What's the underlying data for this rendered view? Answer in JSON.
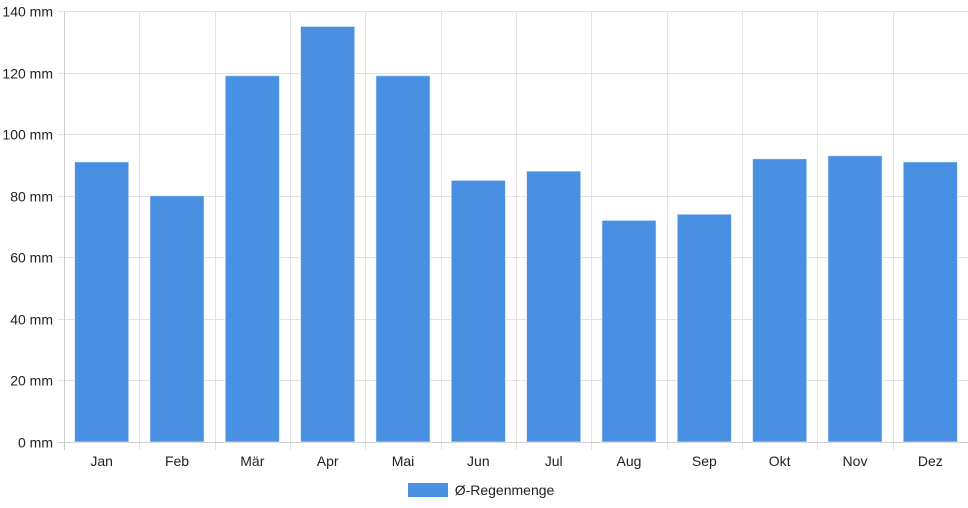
{
  "chart_data": {
    "type": "bar",
    "categories": [
      "Jan",
      "Feb",
      "Mär",
      "Apr",
      "Mai",
      "Jun",
      "Jul",
      "Aug",
      "Sep",
      "Okt",
      "Nov",
      "Dez"
    ],
    "series": [
      {
        "name": "Ø-Regenmenge",
        "values": [
          91,
          80,
          119,
          135,
          119,
          85,
          88,
          72,
          74,
          92,
          93,
          91
        ],
        "color": "#4a90e2"
      }
    ],
    "y_unit": "mm",
    "y_ticks": [
      0,
      20,
      40,
      60,
      80,
      100,
      120,
      140
    ],
    "ylim": [
      0,
      140
    ],
    "grid": true,
    "legend_position": "bottom"
  }
}
